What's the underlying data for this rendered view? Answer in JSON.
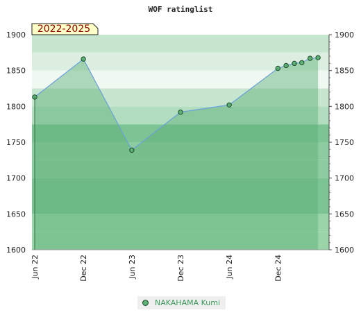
{
  "chart_data": {
    "type": "line",
    "title": "WOF ratinglist",
    "period_badge": "2022-2025",
    "ylim": [
      1600,
      1900
    ],
    "yticks": [
      1600,
      1650,
      1700,
      1750,
      1800,
      1850,
      1900
    ],
    "xlim": [
      "2022-06-01",
      "2025-06-01"
    ],
    "xticks": [
      {
        "label": "Jun 22",
        "date": "2022-06-01"
      },
      {
        "label": "Dec 22",
        "date": "2022-12-01"
      },
      {
        "label": "Jun 23",
        "date": "2023-06-01"
      },
      {
        "label": "Dec 23",
        "date": "2023-12-01"
      },
      {
        "label": "Jun 24",
        "date": "2024-06-01"
      },
      {
        "label": "Dec 24",
        "date": "2024-12-01"
      }
    ],
    "grid": "horizontal bands",
    "legend_position": "bottom",
    "series": [
      {
        "name": "NAKAHAMA Kumi",
        "color": "#5cb075",
        "points": [
          {
            "date": "2022-06-01",
            "value": 1813
          },
          {
            "date": "2022-12-01",
            "value": 1866
          },
          {
            "date": "2023-06-01",
            "value": 1739
          },
          {
            "date": "2023-12-01",
            "value": 1792
          },
          {
            "date": "2024-06-01",
            "value": 1802
          },
          {
            "date": "2024-12-01",
            "value": 1853
          },
          {
            "date": "2025-01-01",
            "value": 1857
          },
          {
            "date": "2025-02-01",
            "value": 1860
          },
          {
            "date": "2025-03-01",
            "value": 1861
          },
          {
            "date": "2025-04-01",
            "value": 1867
          },
          {
            "date": "2025-05-01",
            "value": 1868
          }
        ]
      }
    ]
  }
}
